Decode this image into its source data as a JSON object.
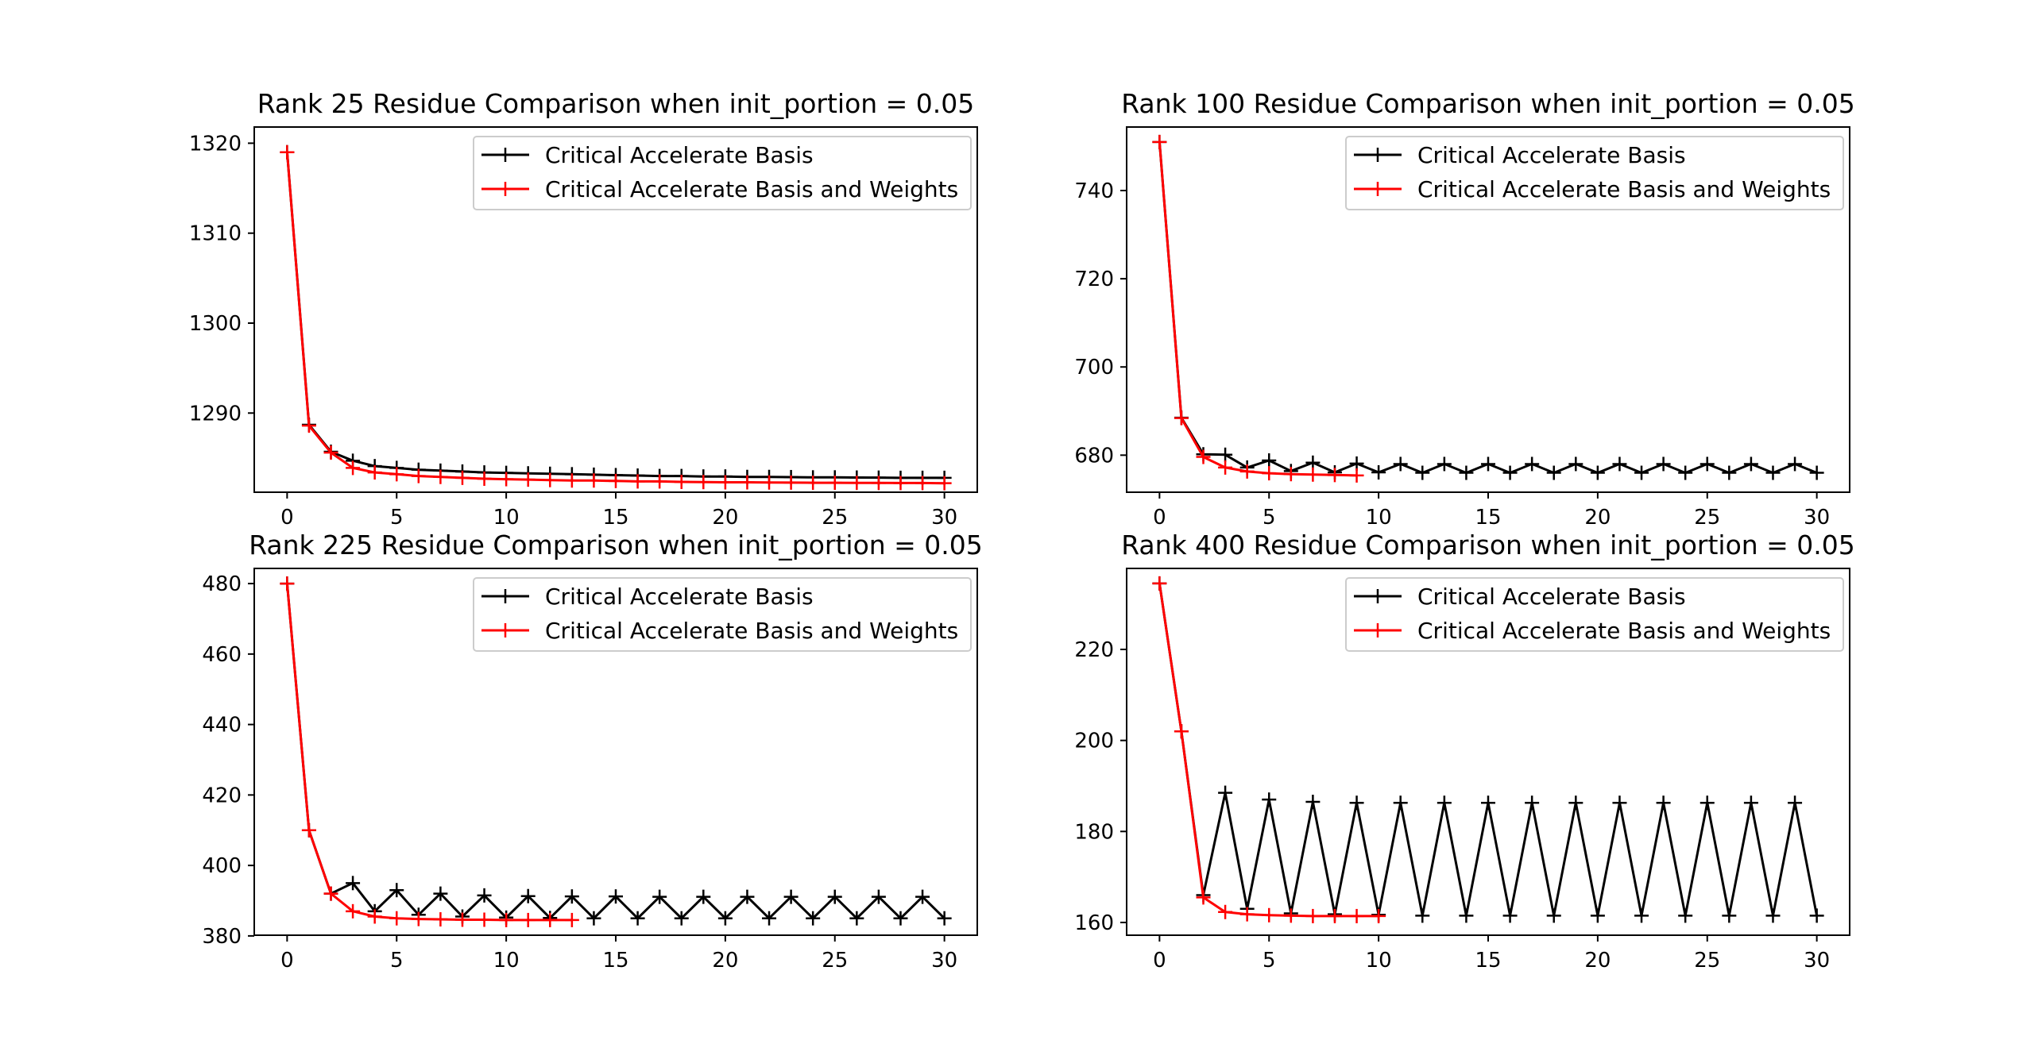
{
  "figure": {
    "background": "#ffffff"
  },
  "chart_data": [
    {
      "type": "line",
      "title": "Rank 25 Residue Comparison when init_portion = 0.05",
      "xlabel": "",
      "ylabel": "",
      "xlim": [
        -1.5,
        31.5
      ],
      "ylim": [
        1281.2,
        1321.8
      ],
      "xticks": [
        0,
        5,
        10,
        15,
        20,
        25,
        30
      ],
      "yticks": [
        1290,
        1300,
        1310,
        1320
      ],
      "legend": "top-right",
      "series": [
        {
          "name": "Critical Accelerate Basis",
          "color": "#000000",
          "marker": "+",
          "x": [
            0,
            1,
            2,
            3,
            4,
            5,
            6,
            7,
            8,
            9,
            10,
            11,
            12,
            13,
            14,
            15,
            16,
            17,
            18,
            19,
            20,
            21,
            22,
            23,
            24,
            25,
            26,
            27,
            28,
            29,
            30
          ],
          "y": [
            1319,
            1288.7,
            1285.7,
            1284.7,
            1284.1,
            1283.9,
            1283.7,
            1283.6,
            1283.5,
            1283.4,
            1283.35,
            1283.3,
            1283.25,
            1283.2,
            1283.15,
            1283.1,
            1283.05,
            1283.0,
            1283.0,
            1282.95,
            1282.95,
            1282.9,
            1282.9,
            1282.88,
            1282.85,
            1282.85,
            1282.83,
            1282.82,
            1282.8,
            1282.8,
            1282.8
          ]
        },
        {
          "name": "Critical Accelerate Basis and Weights",
          "color": "#ff0000",
          "marker": "+",
          "x": [
            0,
            1,
            2,
            3,
            4,
            5,
            6,
            7,
            8,
            9,
            10,
            11,
            12,
            13,
            14,
            15,
            16,
            17,
            18,
            19,
            20,
            21,
            22,
            23,
            24,
            25,
            26,
            27,
            28,
            29,
            30
          ],
          "y": [
            1319,
            1288.6,
            1285.6,
            1283.9,
            1283.4,
            1283.2,
            1283.0,
            1282.9,
            1282.8,
            1282.7,
            1282.65,
            1282.6,
            1282.55,
            1282.5,
            1282.5,
            1282.45,
            1282.4,
            1282.4,
            1282.35,
            1282.33,
            1282.3,
            1282.3,
            1282.28,
            1282.27,
            1282.25,
            1282.25,
            1282.24,
            1282.23,
            1282.22,
            1282.22,
            1282.2
          ]
        }
      ]
    },
    {
      "type": "line",
      "title": "Rank 100 Residue Comparison when init_portion = 0.05",
      "xlabel": "",
      "ylabel": "",
      "xlim": [
        -1.5,
        31.5
      ],
      "ylim": [
        671.6,
        754.4
      ],
      "xticks": [
        0,
        5,
        10,
        15,
        20,
        25,
        30
      ],
      "yticks": [
        680,
        700,
        720,
        740
      ],
      "legend": "top-right",
      "series": [
        {
          "name": "Critical Accelerate Basis",
          "color": "#000000",
          "marker": "+",
          "x": [
            0,
            1,
            2,
            3,
            4,
            5,
            6,
            7,
            8,
            9,
            10,
            11,
            12,
            13,
            14,
            15,
            16,
            17,
            18,
            19,
            20,
            21,
            22,
            23,
            24,
            25,
            26,
            27,
            28,
            29,
            30
          ],
          "y": [
            751,
            688.5,
            680.2,
            680.1,
            677.2,
            678.8,
            676.4,
            678.3,
            676.1,
            678.1,
            676.1,
            678.0,
            676.0,
            678.0,
            676.0,
            678.0,
            676.0,
            678.0,
            676.0,
            678.0,
            676.0,
            678.0,
            676.0,
            678.0,
            676.0,
            678.0,
            676.0,
            678.0,
            676.0,
            678.0,
            676.0
          ]
        },
        {
          "name": "Critical Accelerate Basis and Weights",
          "color": "#ff0000",
          "marker": "+",
          "x": [
            0,
            1,
            2,
            3,
            4,
            5,
            6,
            7,
            8,
            9
          ],
          "y": [
            751,
            688.4,
            679.6,
            677.2,
            676.3,
            675.9,
            675.7,
            675.6,
            675.5,
            675.4
          ]
        }
      ]
    },
    {
      "type": "line",
      "title": "Rank 225 Residue Comparison when init_portion = 0.05",
      "xlabel": "",
      "ylabel": "",
      "xlim": [
        -1.5,
        31.5
      ],
      "ylim": [
        380.2,
        484.3
      ],
      "xticks": [
        0,
        5,
        10,
        15,
        20,
        25,
        30
      ],
      "yticks": [
        380,
        400,
        420,
        440,
        460,
        480
      ],
      "legend": "top-right",
      "series": [
        {
          "name": "Critical Accelerate Basis",
          "color": "#000000",
          "marker": "+",
          "x": [
            0,
            1,
            2,
            3,
            4,
            5,
            6,
            7,
            8,
            9,
            10,
            11,
            12,
            13,
            14,
            15,
            16,
            17,
            18,
            19,
            20,
            21,
            22,
            23,
            24,
            25,
            26,
            27,
            28,
            29,
            30
          ],
          "y": [
            480,
            410,
            392,
            395,
            387,
            393,
            386,
            392,
            385.5,
            391.5,
            385.2,
            391.3,
            385.1,
            391.2,
            385.0,
            391.2,
            385.0,
            391.1,
            385.0,
            391.1,
            385.0,
            391.1,
            385.0,
            391.1,
            385.0,
            391.1,
            385.0,
            391.1,
            385.0,
            391.1,
            385.0
          ]
        },
        {
          "name": "Critical Accelerate Basis and Weights",
          "color": "#ff0000",
          "marker": "+",
          "x": [
            0,
            1,
            2,
            3,
            4,
            5,
            6,
            7,
            8,
            9,
            10,
            11,
            12,
            13
          ],
          "y": [
            480,
            410,
            392,
            387,
            385.5,
            385,
            384.8,
            384.7,
            384.6,
            384.6,
            384.5,
            384.5,
            384.5,
            384.5
          ]
        }
      ]
    },
    {
      "type": "line",
      "title": "Rank 400 Residue Comparison when init_portion = 0.05",
      "xlabel": "",
      "ylabel": "",
      "xlim": [
        -1.5,
        31.5
      ],
      "ylim": [
        157.2,
        237.8
      ],
      "xticks": [
        0,
        5,
        10,
        15,
        20,
        25,
        30
      ],
      "yticks": [
        160,
        180,
        200,
        220
      ],
      "legend": "top-right",
      "series": [
        {
          "name": "Critical Accelerate Basis",
          "color": "#000000",
          "marker": "+",
          "x": [
            0,
            1,
            2,
            3,
            4,
            5,
            6,
            7,
            8,
            9,
            10,
            11,
            12,
            13,
            14,
            15,
            16,
            17,
            18,
            19,
            20,
            21,
            22,
            23,
            24,
            25,
            26,
            27,
            28,
            29,
            30
          ],
          "y": [
            234.5,
            202,
            166,
            188.5,
            163,
            187,
            162,
            186.5,
            161.8,
            186.3,
            161.7,
            186.3,
            161.5,
            186.3,
            161.5,
            186.3,
            161.5,
            186.3,
            161.5,
            186.3,
            161.5,
            186.3,
            161.5,
            186.3,
            161.5,
            186.3,
            161.5,
            186.3,
            161.5,
            186.3,
            161.5
          ]
        },
        {
          "name": "Critical Accelerate Basis and Weights",
          "color": "#ff0000",
          "marker": "+",
          "x": [
            0,
            1,
            2,
            3,
            4,
            5,
            6,
            7,
            8,
            9,
            10
          ],
          "y": [
            234.5,
            202,
            165.5,
            162.3,
            161.8,
            161.6,
            161.5,
            161.4,
            161.4,
            161.4,
            161.4
          ]
        }
      ]
    }
  ]
}
